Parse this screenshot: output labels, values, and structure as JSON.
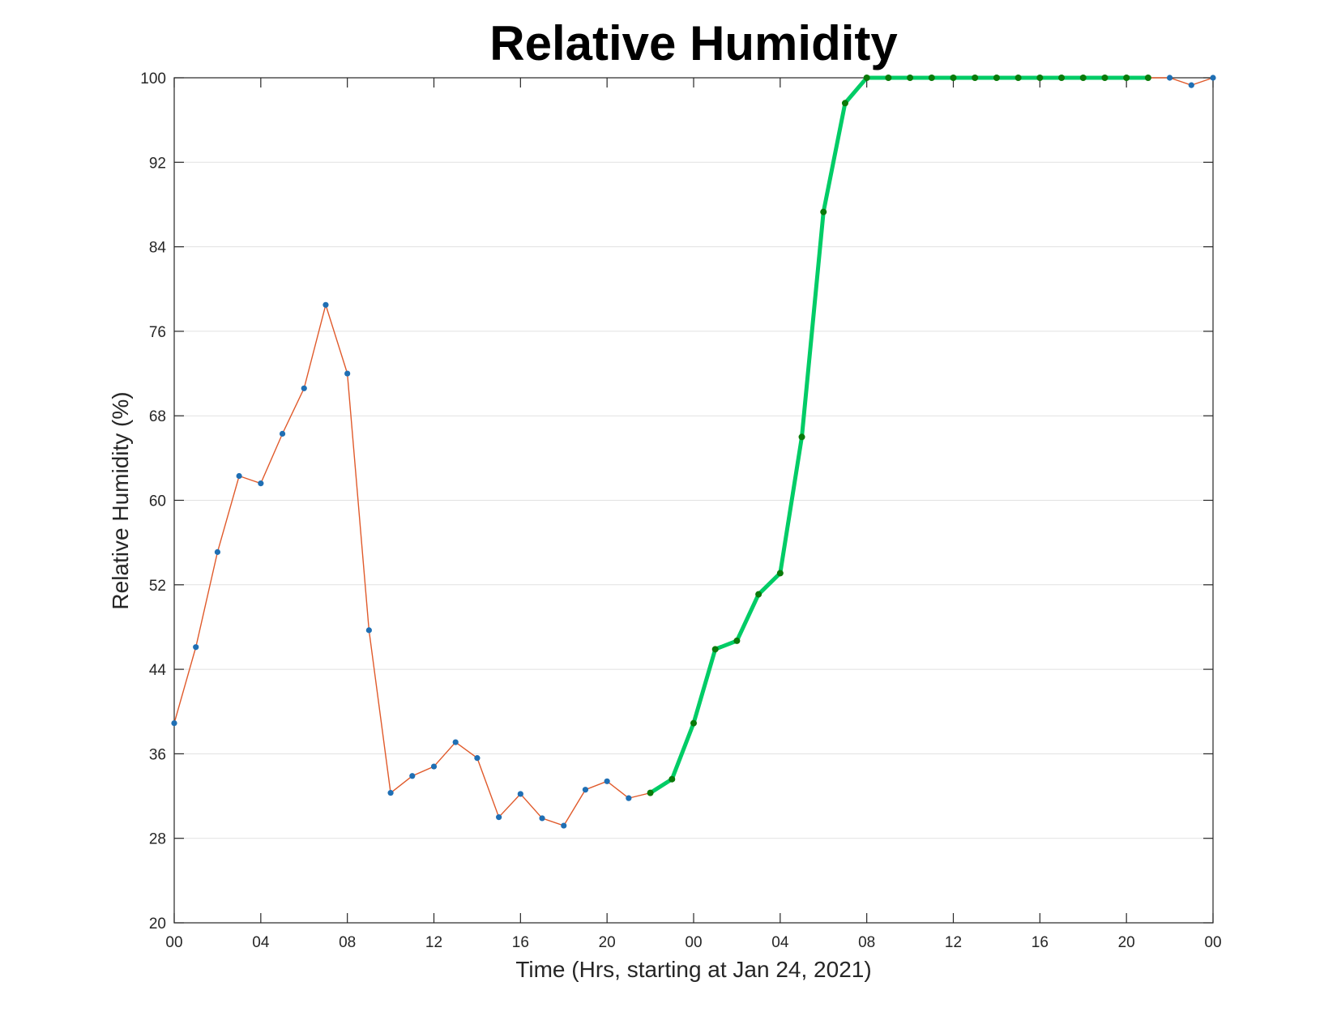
{
  "chart_data": {
    "type": "line",
    "title": "Relative Humidity",
    "xlabel": "Time (Hrs, starting at Jan 24, 2021)",
    "ylabel": "Relative Humidity (%)",
    "xlim": [
      0,
      48
    ],
    "ylim": [
      20,
      100
    ],
    "x_ticks": [
      0,
      4,
      8,
      12,
      16,
      20,
      24,
      28,
      32,
      36,
      40,
      44,
      48
    ],
    "x_tick_labels": [
      "00",
      "04",
      "08",
      "12",
      "16",
      "20",
      "00",
      "04",
      "08",
      "12",
      "16",
      "20",
      "00"
    ],
    "y_ticks": [
      20,
      28,
      36,
      44,
      52,
      60,
      68,
      76,
      84,
      92,
      100
    ],
    "y_tick_labels": [
      "20",
      "28",
      "36",
      "44",
      "52",
      "60",
      "68",
      "76",
      "84",
      "92",
      "100"
    ],
    "grid": "horizontal",
    "legend": "none",
    "colors": {
      "base_line": "#e05a2b",
      "base_marker": "#1f6fb4",
      "highlight_line": "#00cc66",
      "highlight_marker": "#0a7a0a",
      "axes": "#262626",
      "grid": "#e1e1e1"
    },
    "series": [
      {
        "style": "thin-line-with-dot-markers",
        "x": [
          0,
          1,
          2,
          3,
          4,
          5,
          6,
          7,
          8,
          9,
          10,
          11,
          12,
          13,
          14,
          15,
          16,
          17,
          18,
          19,
          20,
          21,
          22,
          23,
          24,
          25,
          26,
          27,
          28,
          29,
          30,
          31,
          32,
          33,
          34,
          35,
          36,
          37,
          38,
          39,
          40,
          41,
          42,
          43,
          44,
          45,
          46,
          47,
          48
        ],
        "values": [
          38.9,
          46.1,
          55.1,
          62.3,
          61.6,
          66.3,
          70.6,
          78.5,
          72.0,
          47.7,
          32.3,
          33.9,
          34.8,
          37.1,
          35.6,
          30.0,
          32.2,
          29.9,
          29.2,
          32.6,
          33.4,
          31.8,
          32.3,
          33.6,
          38.9,
          45.9,
          46.7,
          51.1,
          53.1,
          66.0,
          87.3,
          97.6,
          100,
          100,
          100,
          100,
          100,
          100,
          100,
          100,
          100,
          100,
          100,
          100,
          100,
          100,
          100,
          99.3,
          100
        ]
      },
      {
        "style": "thick-highlight",
        "x": [
          22,
          23,
          24,
          25,
          26,
          27,
          28,
          29,
          30,
          31,
          32,
          33,
          34,
          35,
          36,
          37,
          38,
          39,
          40,
          41,
          42,
          43,
          44,
          45
        ],
        "values": [
          32.3,
          33.6,
          38.9,
          45.9,
          46.7,
          51.1,
          53.1,
          66.0,
          87.3,
          97.6,
          100,
          100,
          100,
          100,
          100,
          100,
          100,
          100,
          100,
          100,
          100,
          100,
          100,
          100
        ]
      }
    ]
  }
}
